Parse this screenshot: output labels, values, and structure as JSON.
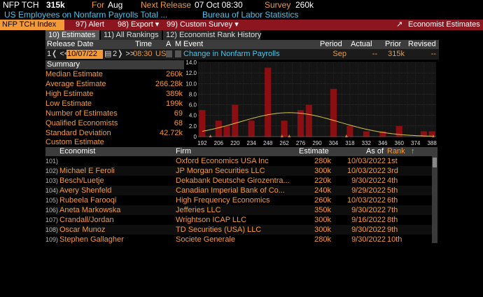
{
  "header": {
    "ticker": "NFP TCH",
    "value": "315k",
    "for_label": "For",
    "for_value": "Aug",
    "next_release_label": "Next Release",
    "next_release_value": "07 Oct 08:30",
    "survey_label": "Survey",
    "survey_value": "260k",
    "description": "US Employees on Nonfarm Payrolls Total ...",
    "source": "Bureau of Labor Statistics"
  },
  "toolbar": {
    "index": "NFP TCH Index",
    "alert": "97) Alert",
    "export": "98) Export ▾",
    "custom_survey": "99) Custom Survey ▾",
    "economist_estimates": "Economist Estimates"
  },
  "tabs": [
    {
      "label": "10) Estimates"
    },
    {
      "label": "11) All Rankings"
    },
    {
      "label": "12) Economist Rank History"
    }
  ],
  "event": {
    "headers": {
      "release_date": "Release Date",
      "time": "Time",
      "a": "A",
      "m": "M",
      "event": "Event",
      "period": "Period",
      "actual": "Actual",
      "prior": "Prior",
      "revised": "Revised"
    },
    "nav_prev": "1❬ <<",
    "date": "10/07/22",
    "nav_next": "2❭ >>",
    "time": "08:30",
    "country": "US",
    "name": "Change in Nonfarm Payrolls",
    "period": "Sep",
    "actual": "--",
    "prior": "315k",
    "revised": "--"
  },
  "summary": {
    "title": "Summary",
    "rows": [
      {
        "label": "Median Estimate",
        "value": "260k"
      },
      {
        "label": "Average Estimate",
        "value": "266.28k"
      },
      {
        "label": "High Estimate",
        "value": "389k"
      },
      {
        "label": "Low Estimate",
        "value": "199k"
      },
      {
        "label": "Number of Estimates",
        "value": "69"
      },
      {
        "label": "Qualified Economists",
        "value": "68"
      },
      {
        "label": "Standard Deviation",
        "value": "42.72k"
      },
      {
        "label": "Custom Estimate",
        "value": ""
      }
    ]
  },
  "chart_data": {
    "type": "bar",
    "x": [
      192,
      199,
      206,
      213,
      220,
      227,
      234,
      241,
      248,
      255,
      262,
      269,
      276,
      283,
      290,
      297,
      304,
      311,
      318,
      325,
      332,
      339,
      346,
      353,
      360,
      367,
      374,
      381,
      388
    ],
    "values": [
      5,
      0,
      3,
      2,
      6,
      0,
      3,
      0,
      13,
      0,
      3,
      0,
      5,
      6,
      0,
      0,
      9,
      0,
      2,
      0,
      1,
      0,
      1,
      0,
      2,
      0,
      0,
      1,
      1
    ],
    "xticks": [
      192,
      206,
      220,
      234,
      248,
      262,
      276,
      290,
      304,
      318,
      332,
      346,
      360,
      374,
      388
    ],
    "yticks": [
      "0",
      "2.0",
      "4.0",
      "6.0",
      "8.0",
      "10.0",
      "12.0",
      "14.0"
    ],
    "ylim": [
      0,
      14
    ],
    "grid": true,
    "bar_color": "#8b0f12",
    "curve_color": "#d8c44a"
  },
  "economists": {
    "headers": {
      "economist": "Economist",
      "firm": "Firm",
      "estimate": "Estimate",
      "asof": "As of",
      "rank": "Rank"
    },
    "rows": [
      {
        "num": "101)",
        "name": "",
        "firm": "Oxford Economics USA Inc",
        "estimate": "280k",
        "asof": "10/03/2022",
        "rank": "1st"
      },
      {
        "num": "102)",
        "name": "Michael E Feroli",
        "firm": "JP Morgan Securities LLC",
        "estimate": "300k",
        "asof": "10/03/2022",
        "rank": "3rd"
      },
      {
        "num": "103)",
        "name": "Besch/Luetje",
        "firm": "Dekabank Deutsche Girozentra...",
        "estimate": "220k",
        "asof": "9/30/2022",
        "rank": "4th"
      },
      {
        "num": "104)",
        "name": "Avery Shenfeld",
        "firm": "Canadian Imperial Bank of Co...",
        "estimate": "240k",
        "asof": "9/29/2022",
        "rank": "5th"
      },
      {
        "num": "105)",
        "name": "Rubeela Farooqi",
        "firm": "High Frequency Economics",
        "estimate": "260k",
        "asof": "10/03/2022",
        "rank": "6th"
      },
      {
        "num": "106)",
        "name": "Aneta Markowska",
        "firm": "Jefferies LLC",
        "estimate": "350k",
        "asof": "9/30/2022",
        "rank": "7th"
      },
      {
        "num": "107)",
        "name": "Crandall/Jordan",
        "firm": "Wrightson ICAP LLC",
        "estimate": "300k",
        "asof": "9/16/2022",
        "rank": "8th"
      },
      {
        "num": "108)",
        "name": "Oscar Munoz",
        "firm": "TD Securities (USA) LLC",
        "estimate": "300k",
        "asof": "9/30/2022",
        "rank": "9th"
      },
      {
        "num": "109)",
        "name": "Stephen Gallagher",
        "firm": "Societe Generale",
        "estimate": "280k",
        "asof": "9/30/2022",
        "rank": "10th"
      }
    ]
  }
}
